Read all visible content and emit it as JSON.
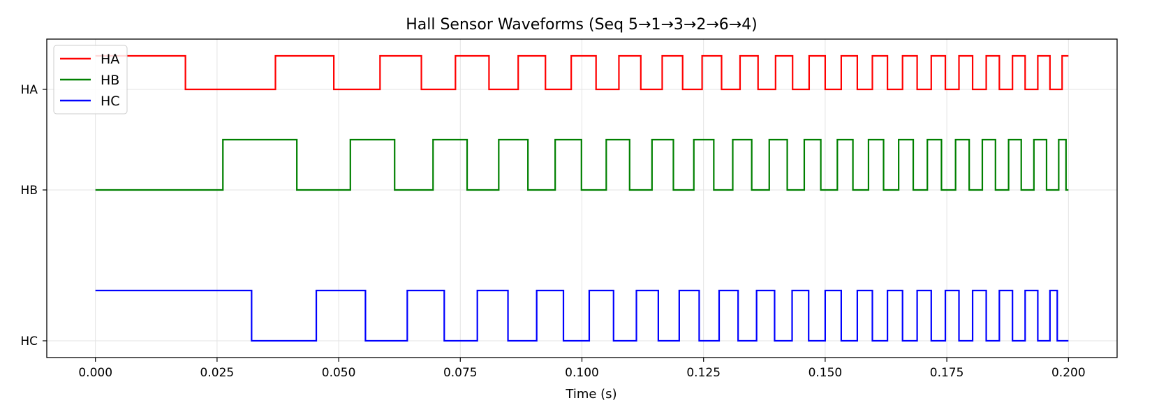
{
  "chart_data": {
    "type": "line",
    "title": "Hall Sensor Waveforms (Seq 5→1→3→2→6→4)",
    "xlabel": "Time (s)",
    "ylabel": "",
    "xlim": [
      -0.01,
      0.21
    ],
    "x_ticks": [
      "0.000",
      "0.025",
      "0.050",
      "0.075",
      "0.100",
      "0.125",
      "0.150",
      "0.175",
      "0.200"
    ],
    "x_tick_values": [
      0.0,
      0.025,
      0.05,
      0.075,
      0.1,
      0.125,
      0.15,
      0.175,
      0.2
    ],
    "y_ticks": [
      "HA",
      "HB",
      "HC"
    ],
    "grid": true,
    "legend_position": "top-left",
    "series": [
      {
        "name": "HA",
        "color": "#ff0000",
        "initial": 1,
        "toggle_times": [
          0.0185,
          0.037,
          0.049,
          0.0585,
          0.067,
          0.074,
          0.0809,
          0.0869,
          0.0925,
          0.0978,
          0.1029,
          0.1076,
          0.1121,
          0.1165,
          0.1207,
          0.1247,
          0.1287,
          0.1325,
          0.1362,
          0.1398,
          0.1433,
          0.1467,
          0.15,
          0.1533,
          0.1566,
          0.1597,
          0.1628,
          0.1659,
          0.1689,
          0.1718,
          0.1747,
          0.1775,
          0.1803,
          0.1831,
          0.1858,
          0.1885,
          0.1911,
          0.1937,
          0.1962,
          0.1987
        ],
        "x_end": 0.2
      },
      {
        "name": "HB",
        "color": "#008000",
        "initial": 0,
        "toggle_times": [
          0.0262,
          0.0414,
          0.0524,
          0.0615,
          0.0694,
          0.0764,
          0.0829,
          0.0889,
          0.0945,
          0.0999,
          0.105,
          0.1098,
          0.1144,
          0.1188,
          0.123,
          0.1271,
          0.131,
          0.1349,
          0.1385,
          0.1422,
          0.1457,
          0.1491,
          0.1525,
          0.1557,
          0.1589,
          0.162,
          0.1651,
          0.1681,
          0.171,
          0.1739,
          0.1768,
          0.1796,
          0.1823,
          0.185,
          0.1877,
          0.1903,
          0.1929,
          0.1955,
          0.198,
          0.1995
        ],
        "x_end": 0.2
      },
      {
        "name": "HC",
        "color": "#0000ff",
        "initial": 1,
        "toggle_times": [
          0.0321,
          0.0454,
          0.0555,
          0.0641,
          0.0717,
          0.0785,
          0.0848,
          0.0907,
          0.0962,
          0.1015,
          0.1065,
          0.1112,
          0.1157,
          0.12,
          0.1241,
          0.1282,
          0.1321,
          0.1359,
          0.1396,
          0.1432,
          0.1466,
          0.15,
          0.1533,
          0.1566,
          0.1597,
          0.1628,
          0.1659,
          0.1689,
          0.1718,
          0.1747,
          0.1775,
          0.1803,
          0.1831,
          0.1858,
          0.1885,
          0.1911,
          0.1937,
          0.1962,
          0.1977
        ],
        "x_end": 0.2
      }
    ]
  }
}
